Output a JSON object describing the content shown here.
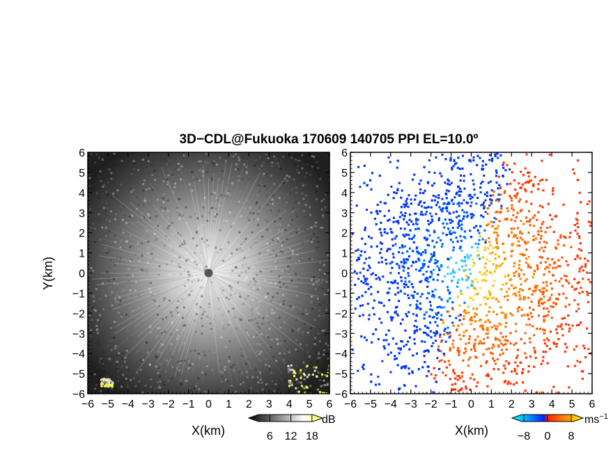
{
  "title": "3D−CDL@Fukuoka 170609 140705 PPI EL=10.0º",
  "colors": {
    "background": "#ffffff",
    "axes": "#000000",
    "reflectivity_dark": "#111111",
    "reflectivity_light": "#dddddd",
    "reflectivity_high": "#ffff33",
    "velocity_negative_dark": "#0033ff",
    "velocity_negative_light": "#33ccff",
    "velocity_zero": "#ff3300",
    "velocity_positive": "#ffcc00"
  },
  "chart_data": [
    {
      "type": "heatmap",
      "panel": "reflectivity",
      "xlabel": "X(km)",
      "ylabel": "Y(km)",
      "xlim": [
        -6,
        6
      ],
      "ylim": [
        -6,
        6
      ],
      "x_ticks": [
        "−6",
        "−5",
        "−4",
        "−3",
        "−2",
        "−1",
        "0",
        "1",
        "2",
        "3",
        "4",
        "5",
        "6"
      ],
      "y_ticks": [
        "6",
        "5",
        "4",
        "3",
        "2",
        "1",
        "0",
        "−1",
        "−2",
        "−3",
        "−4",
        "−5",
        "−6"
      ],
      "colorbar": {
        "unit": "dB",
        "tick_labels": [
          "6",
          "12",
          "18"
        ],
        "ticks": [
          6,
          12,
          18
        ],
        "range": [
          0,
          21
        ],
        "colormap": "grayscale-to-yellow"
      },
      "features": {
        "center_blank": {
          "x": 0,
          "y": 0,
          "radius_km": 0.2
        },
        "high_echo_regions": [
          {
            "x_range": [
              -5.4,
              -4.8
            ],
            "y_range": [
              -5.6,
              -5.2
            ]
          },
          {
            "x_range": [
              3.9,
              6.0
            ],
            "y_range": [
              -6.0,
              -4.5
            ]
          }
        ]
      }
    },
    {
      "type": "heatmap",
      "panel": "doppler_velocity",
      "xlabel": "X(km)",
      "ylabel": "",
      "xlim": [
        -6,
        6
      ],
      "ylim": [
        -6,
        6
      ],
      "x_ticks": [
        "−6",
        "−5",
        "−4",
        "−3",
        "−2",
        "−1",
        "0",
        "1",
        "2",
        "3",
        "4",
        "5",
        "6"
      ],
      "y_ticks": [
        "6",
        "5",
        "4",
        "3",
        "2",
        "1",
        "0",
        "−1",
        "−2",
        "−3",
        "−4",
        "−5",
        "−6"
      ],
      "colorbar": {
        "unit": "ms",
        "unit_superscript": "−1",
        "tick_labels": [
          "−8",
          "0",
          "8"
        ],
        "ticks": [
          -8,
          0,
          8
        ],
        "range": [
          -12,
          12
        ],
        "colormap": "cyan-blue-red-orange-yellow"
      },
      "features": {
        "flow_direction_deg": 160,
        "negative_region": "west",
        "positive_region": "east"
      }
    }
  ]
}
